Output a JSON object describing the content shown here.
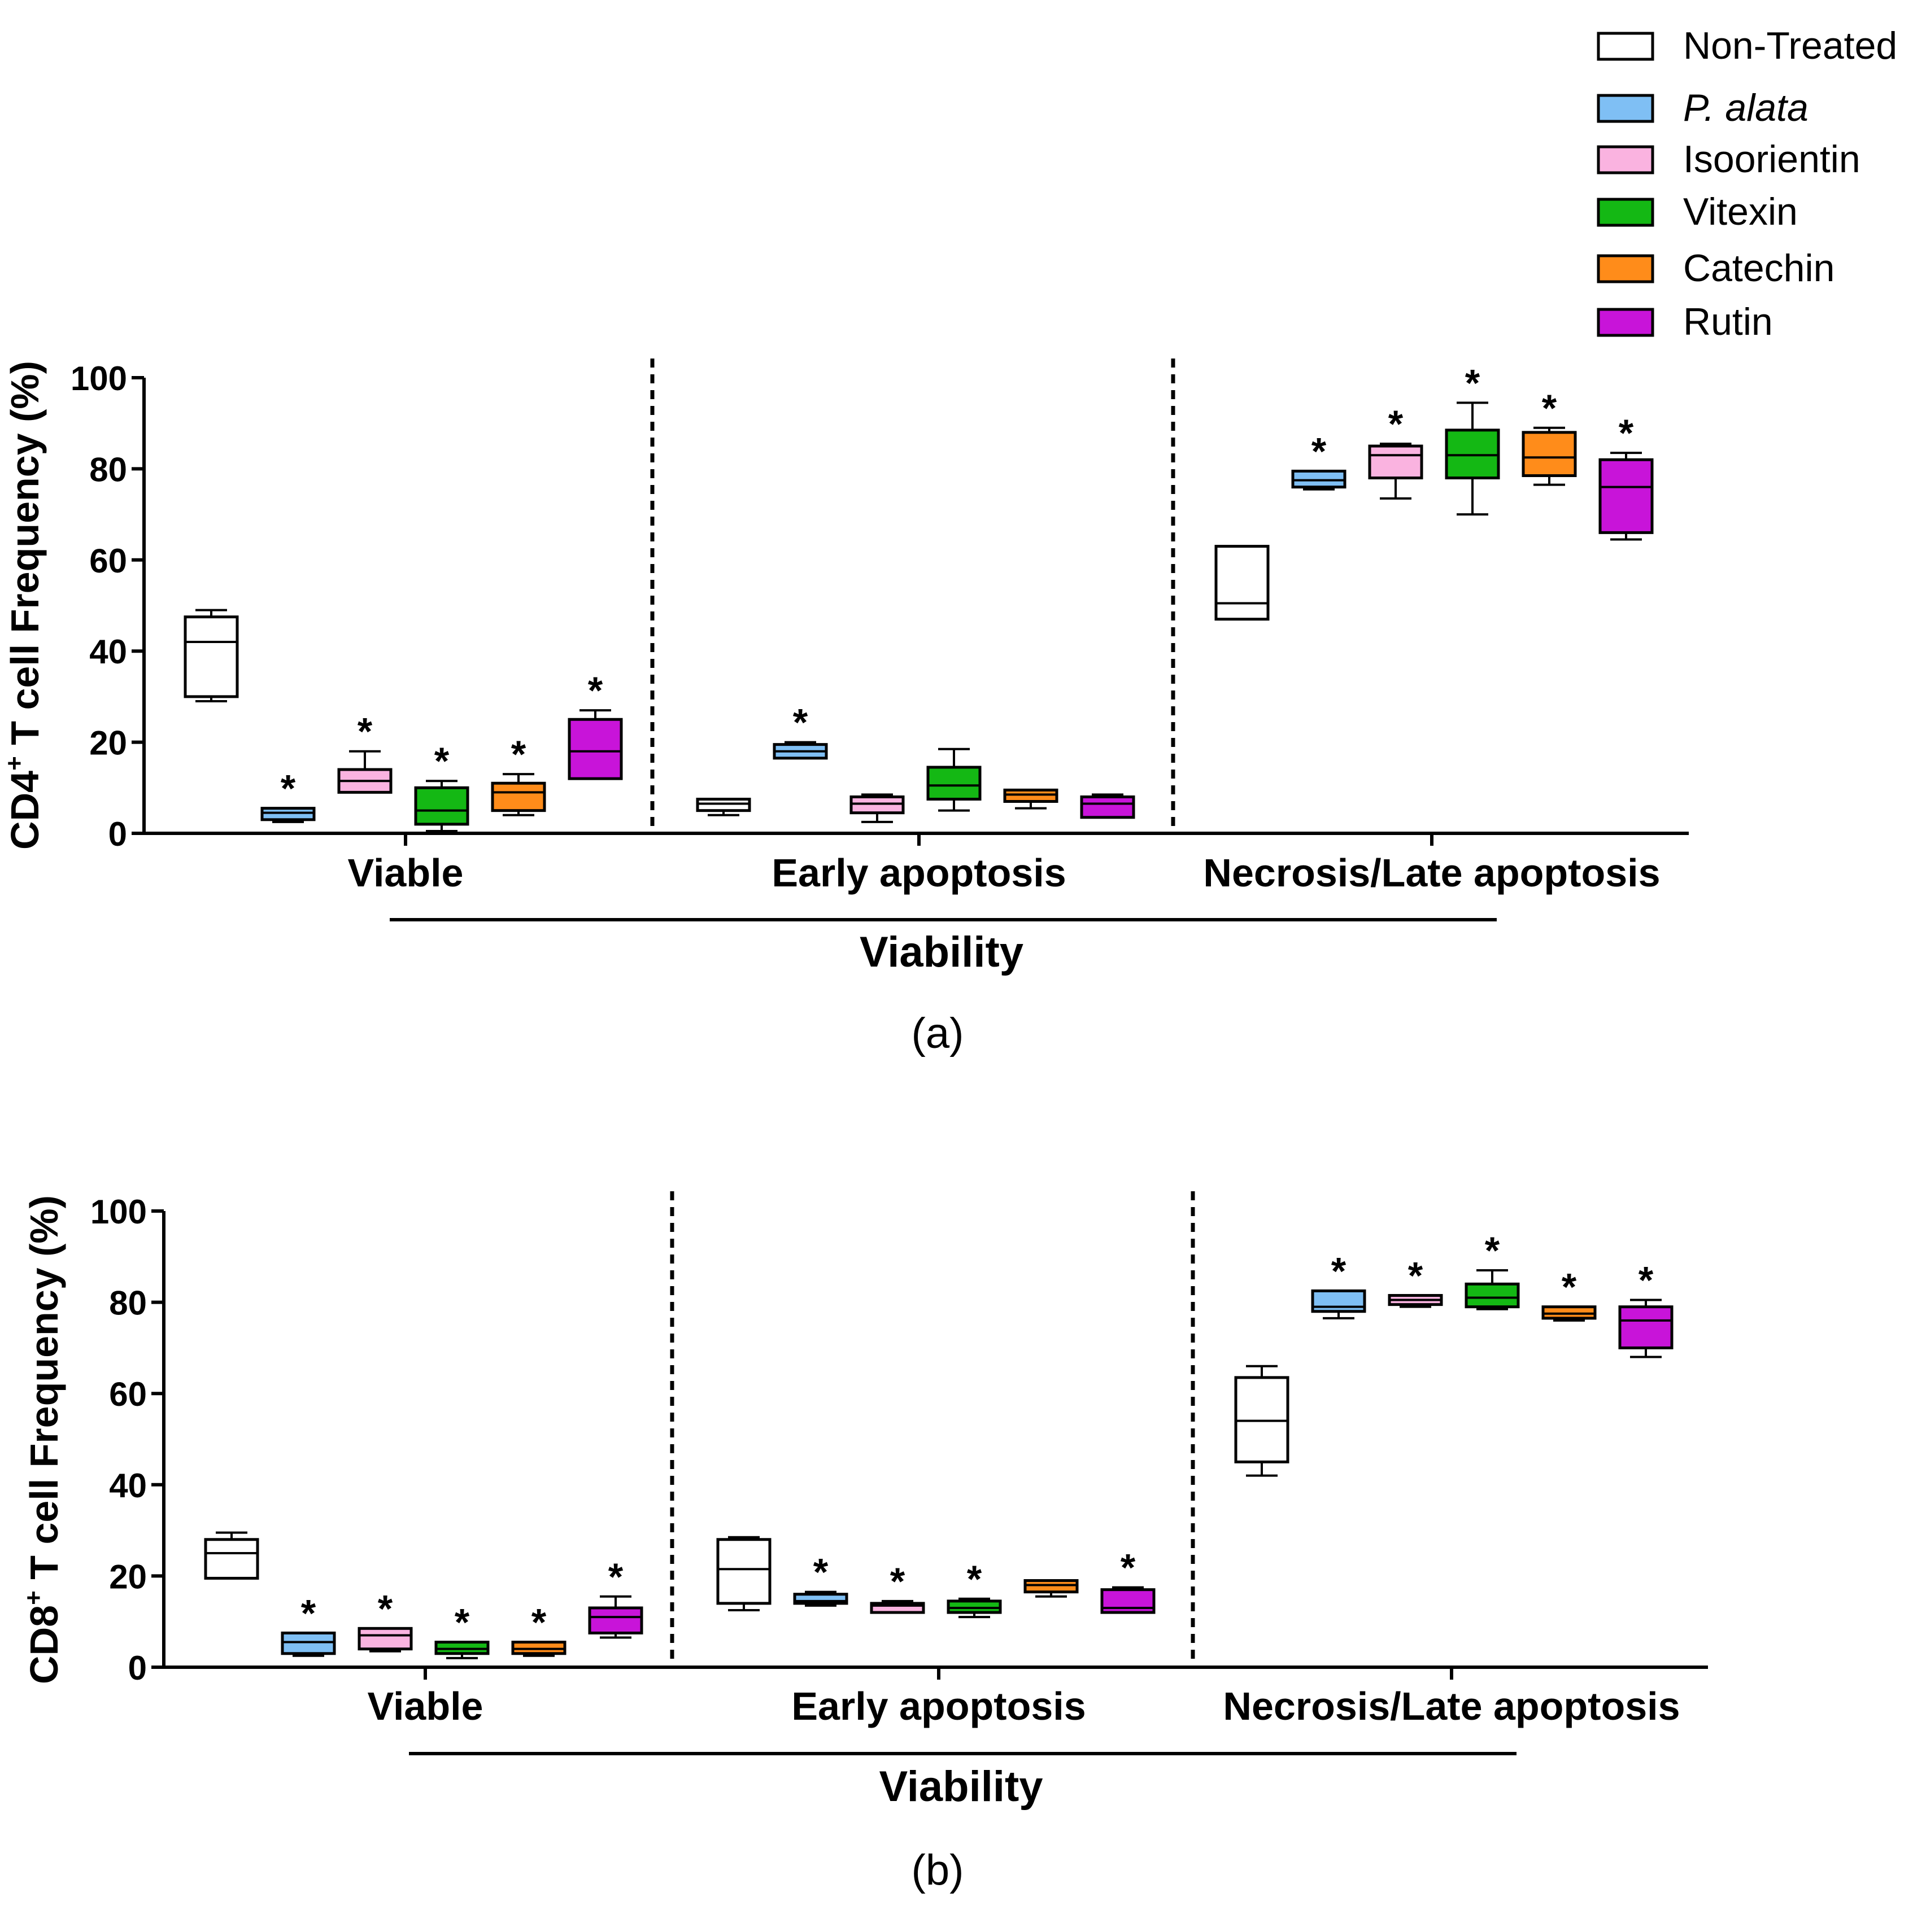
{
  "legend": {
    "items": [
      {
        "label": "Non-Treated",
        "color": "#ffffff",
        "italic": false
      },
      {
        "label": "P. alata",
        "color": "#7fbff4",
        "italic": true
      },
      {
        "label": "Isoorientin",
        "color": "#fab3e0",
        "italic": false
      },
      {
        "label": "Vitexin",
        "color": "#14b814",
        "italic": false
      },
      {
        "label": "Catechin",
        "color": "#ff8c1a",
        "italic": false
      },
      {
        "label": "Rutin",
        "color": "#c814d9",
        "italic": false
      }
    ]
  },
  "chart_data": [
    {
      "type": "box",
      "panel_label": "(a)",
      "ylabel_prefix": "CD4",
      "ylabel_sup": "+",
      "ylabel_suffix": " T cell Frequency (%)",
      "xlabel": "Viability",
      "ylim": [
        0,
        100
      ],
      "yticks": [
        "0",
        "20",
        "40",
        "60",
        "80",
        "100"
      ],
      "categories": [
        "Viable",
        "Early apoptosis",
        "Necrosis/Late apoptosis"
      ],
      "significance_marker": "*",
      "groups": [
        {
          "category": "Viable",
          "boxes": [
            {
              "series": "Non-Treated",
              "min": 29,
              "q1": 30,
              "median": 42,
              "q3": 47.5,
              "max": 49,
              "sig": false
            },
            {
              "series": "P. alata",
              "min": 2.5,
              "q1": 3,
              "median": 4.5,
              "q3": 5.5,
              "max": 5.5,
              "sig": true
            },
            {
              "series": "Isoorientin",
              "min": 9,
              "q1": 9,
              "median": 11.5,
              "q3": 14,
              "max": 18,
              "sig": true
            },
            {
              "series": "Vitexin",
              "min": 0.5,
              "q1": 2,
              "median": 5,
              "q3": 10,
              "max": 11.5,
              "sig": true
            },
            {
              "series": "Catechin",
              "min": 4,
              "q1": 5,
              "median": 9,
              "q3": 11,
              "max": 13,
              "sig": true
            },
            {
              "series": "Rutin",
              "min": 12,
              "q1": 12,
              "median": 18,
              "q3": 25,
              "max": 27,
              "sig": true
            }
          ]
        },
        {
          "category": "Early apoptosis",
          "boxes": [
            {
              "series": "Non-Treated",
              "min": 4,
              "q1": 5,
              "median": 6.5,
              "q3": 7.5,
              "max": 7.5,
              "sig": false
            },
            {
              "series": "P. alata",
              "min": 16.5,
              "q1": 16.5,
              "median": 18,
              "q3": 19.5,
              "max": 20,
              "sig": true
            },
            {
              "series": "Isoorientin",
              "min": 2.5,
              "q1": 4.5,
              "median": 6.5,
              "q3": 8,
              "max": 8.5,
              "sig": false
            },
            {
              "series": "Vitexin",
              "min": 5,
              "q1": 7.5,
              "median": 10.5,
              "q3": 14.5,
              "max": 18.5,
              "sig": false
            },
            {
              "series": "Catechin",
              "min": 5.5,
              "q1": 7,
              "median": 8.5,
              "q3": 9.5,
              "max": 9.5,
              "sig": false
            },
            {
              "series": "Rutin",
              "min": 3.5,
              "q1": 3.5,
              "median": 6.5,
              "q3": 8,
              "max": 8.5,
              "sig": false
            }
          ]
        },
        {
          "category": "Necrosis/Late apoptosis",
          "boxes": [
            {
              "series": "Non-Treated",
              "min": 47,
              "q1": 47,
              "median": 50.5,
              "q3": 63,
              "max": 63,
              "sig": false
            },
            {
              "series": "P. alata",
              "min": 75.5,
              "q1": 76,
              "median": 77.5,
              "q3": 79.5,
              "max": 79.5,
              "sig": true
            },
            {
              "series": "Isoorientin",
              "min": 73.5,
              "q1": 78,
              "median": 83,
              "q3": 85,
              "max": 85.5,
              "sig": true
            },
            {
              "series": "Vitexin",
              "min": 70,
              "q1": 78,
              "median": 83,
              "q3": 88.5,
              "max": 94.5,
              "sig": true
            },
            {
              "series": "Catechin",
              "min": 76.5,
              "q1": 78.5,
              "median": 82.5,
              "q3": 88,
              "max": 89,
              "sig": true
            },
            {
              "series": "Rutin",
              "min": 64.5,
              "q1": 66,
              "median": 76,
              "q3": 82,
              "max": 83.5,
              "sig": true
            }
          ]
        }
      ]
    },
    {
      "type": "box",
      "panel_label": "(b)",
      "ylabel_prefix": "CD8",
      "ylabel_sup": "+",
      "ylabel_suffix": " T cell Frequency (%)",
      "xlabel": "Viability",
      "ylim": [
        0,
        100
      ],
      "yticks": [
        "0",
        "20",
        "40",
        "60",
        "80",
        "100"
      ],
      "categories": [
        "Viable",
        "Early apoptosis",
        "Necrosis/Late apoptosis"
      ],
      "significance_marker": "*",
      "groups": [
        {
          "category": "Viable",
          "boxes": [
            {
              "series": "Non-Treated",
              "min": 19.5,
              "q1": 19.5,
              "median": 25,
              "q3": 28,
              "max": 29.5,
              "sig": false
            },
            {
              "series": "P. alata",
              "min": 2.5,
              "q1": 3,
              "median": 5.5,
              "q3": 7.5,
              "max": 7.5,
              "sig": true
            },
            {
              "series": "Isoorientin",
              "min": 3.5,
              "q1": 4,
              "median": 7,
              "q3": 8.5,
              "max": 8.5,
              "sig": true
            },
            {
              "series": "Vitexin",
              "min": 2,
              "q1": 3,
              "median": 4,
              "q3": 5.5,
              "max": 5.5,
              "sig": true
            },
            {
              "series": "Catechin",
              "min": 2.5,
              "q1": 3,
              "median": 4,
              "q3": 5.5,
              "max": 5.5,
              "sig": true
            },
            {
              "series": "Rutin",
              "min": 6.5,
              "q1": 7.5,
              "median": 11,
              "q3": 13,
              "max": 15.5,
              "sig": true
            }
          ]
        },
        {
          "category": "Early apoptosis",
          "boxes": [
            {
              "series": "Non-Treated",
              "min": 12.5,
              "q1": 14,
              "median": 21.5,
              "q3": 28,
              "max": 28.5,
              "sig": false
            },
            {
              "series": "P. alata",
              "min": 13.5,
              "q1": 14,
              "median": 14.5,
              "q3": 16,
              "max": 16.5,
              "sig": true
            },
            {
              "series": "Isoorientin",
              "min": 12,
              "q1": 12,
              "median": 13.5,
              "q3": 14,
              "max": 14.5,
              "sig": true
            },
            {
              "series": "Vitexin",
              "min": 11,
              "q1": 12,
              "median": 13,
              "q3": 14.5,
              "max": 15,
              "sig": true
            },
            {
              "series": "Catechin",
              "min": 15.5,
              "q1": 16.5,
              "median": 18,
              "q3": 19,
              "max": 19,
              "sig": false
            },
            {
              "series": "Rutin",
              "min": 12,
              "q1": 12,
              "median": 13,
              "q3": 17,
              "max": 17.5,
              "sig": true
            }
          ]
        },
        {
          "category": "Necrosis/Late apoptosis",
          "boxes": [
            {
              "series": "Non-Treated",
              "min": 42,
              "q1": 45,
              "median": 54,
              "q3": 63.5,
              "max": 66,
              "sig": false
            },
            {
              "series": "P. alata",
              "min": 76.5,
              "q1": 78,
              "median": 79,
              "q3": 82.5,
              "max": 82.5,
              "sig": true
            },
            {
              "series": "Isoorientin",
              "min": 79,
              "q1": 79.5,
              "median": 80.5,
              "q3": 81.5,
              "max": 81.5,
              "sig": true
            },
            {
              "series": "Vitexin",
              "min": 78.5,
              "q1": 79,
              "median": 81,
              "q3": 84,
              "max": 87,
              "sig": true
            },
            {
              "series": "Catechin",
              "min": 76,
              "q1": 76.5,
              "median": 77.5,
              "q3": 79,
              "max": 79,
              "sig": true
            },
            {
              "series": "Rutin",
              "min": 68,
              "q1": 70,
              "median": 76,
              "q3": 79,
              "max": 80.5,
              "sig": true
            }
          ]
        }
      ]
    }
  ]
}
